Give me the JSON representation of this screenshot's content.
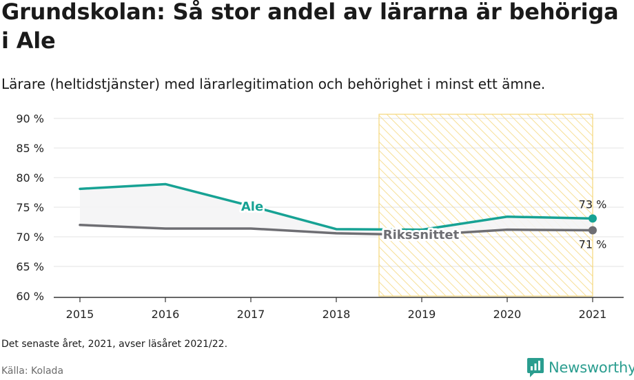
{
  "header": {
    "title": "Grundskolan: Så stor andel av lärarna är behöriga i Ale",
    "subtitle": "Lärare (heltidstjänster) med lärarlegitimation och behörighet i minst ett ämne."
  },
  "footer": {
    "note": "Det senaste året, 2021, avser läsåret 2021/22.",
    "source": "Källa: Kolada",
    "brand": "Newsworthy"
  },
  "colors": {
    "ale": "#17a294",
    "riks": "#6e6e73",
    "highlight": "#f5d77a",
    "grid": "#e3e3e3",
    "axis": "#333333"
  },
  "chart_data": {
    "type": "line",
    "x": [
      "2015",
      "2016",
      "2017",
      "2018",
      "2019",
      "2020",
      "2021"
    ],
    "ylim": [
      60,
      90
    ],
    "yticks": [
      60,
      65,
      70,
      75,
      80,
      85,
      90
    ],
    "ytick_labels": [
      "60 %",
      "65 %",
      "70 %",
      "75 %",
      "80 %",
      "85 %",
      "90 %"
    ],
    "series": [
      {
        "name": "Ale",
        "values": [
          78.1,
          78.9,
          75.2,
          71.3,
          71.2,
          73.4,
          73.1
        ],
        "end_label": "73 %"
      },
      {
        "name": "Rikssnittet",
        "values": [
          72.0,
          71.4,
          71.4,
          70.6,
          70.3,
          71.2,
          71.1
        ],
        "end_label": "71 %"
      }
    ],
    "highlight_range": [
      "2018.5",
      "2021"
    ]
  }
}
